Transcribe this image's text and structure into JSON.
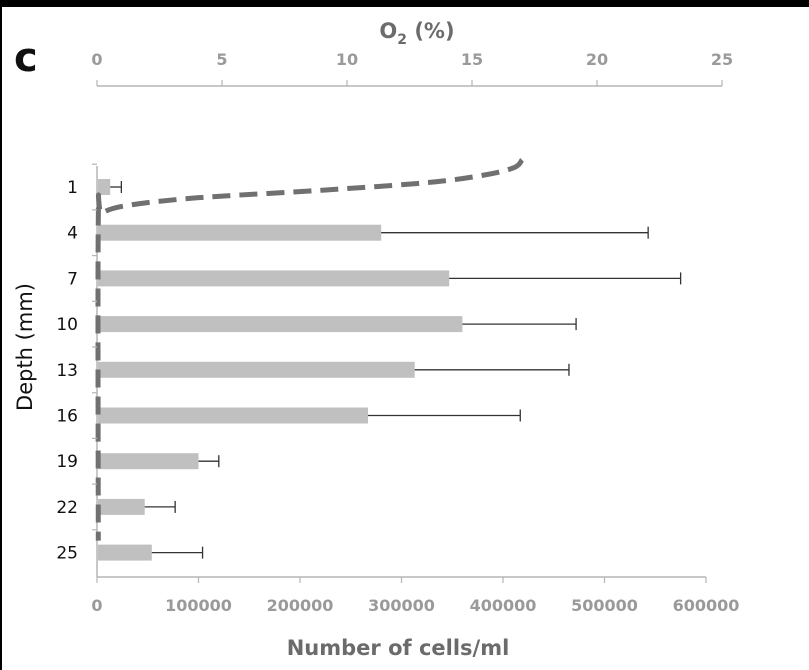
{
  "panel_label": "c",
  "chart_data": {
    "type": "bar",
    "orientation": "horizontal",
    "categories": [
      "1",
      "4",
      "7",
      "10",
      "13",
      "16",
      "19",
      "22",
      "25"
    ],
    "series": [
      {
        "values": [
          13000,
          280000,
          347000,
          360000,
          313000,
          267000,
          100000,
          47000,
          54000
        ],
        "error": [
          11000,
          263000,
          228000,
          112000,
          152000,
          150000,
          20000,
          30000,
          50000
        ],
        "color": "#c0c0c0"
      }
    ],
    "xlabel": "Number of cells/ml",
    "ylabel": "Depth (mm)",
    "xlim": [
      0,
      600000
    ],
    "xticks": [
      "0",
      "100000",
      "200000",
      "300000",
      "400000",
      "500000",
      "600000"
    ],
    "secondary_x": {
      "label_main": "O",
      "label_sub": "2",
      "label_tail": " (%)",
      "xlim": [
        0,
        25
      ],
      "ticks": [
        "0",
        "5",
        "10",
        "15",
        "20",
        "25"
      ],
      "line_style": "dashed",
      "line_color": "#707070",
      "profile": [
        {
          "depth": 0,
          "o2": 17.0
        },
        {
          "depth": 0.5,
          "o2": 16.7
        },
        {
          "depth": 1.0,
          "o2": 15.5
        },
        {
          "depth": 1.5,
          "o2": 13.2
        },
        {
          "depth": 2.0,
          "o2": 9.0
        },
        {
          "depth": 2.5,
          "o2": 4.0
        },
        {
          "depth": 3.0,
          "o2": 1.2
        },
        {
          "depth": 3.5,
          "o2": 0.2
        },
        {
          "depth": 4.0,
          "o2": 0.05
        },
        {
          "depth": 25.0,
          "o2": 0.05
        }
      ]
    },
    "legend": "none",
    "grid": false
  }
}
